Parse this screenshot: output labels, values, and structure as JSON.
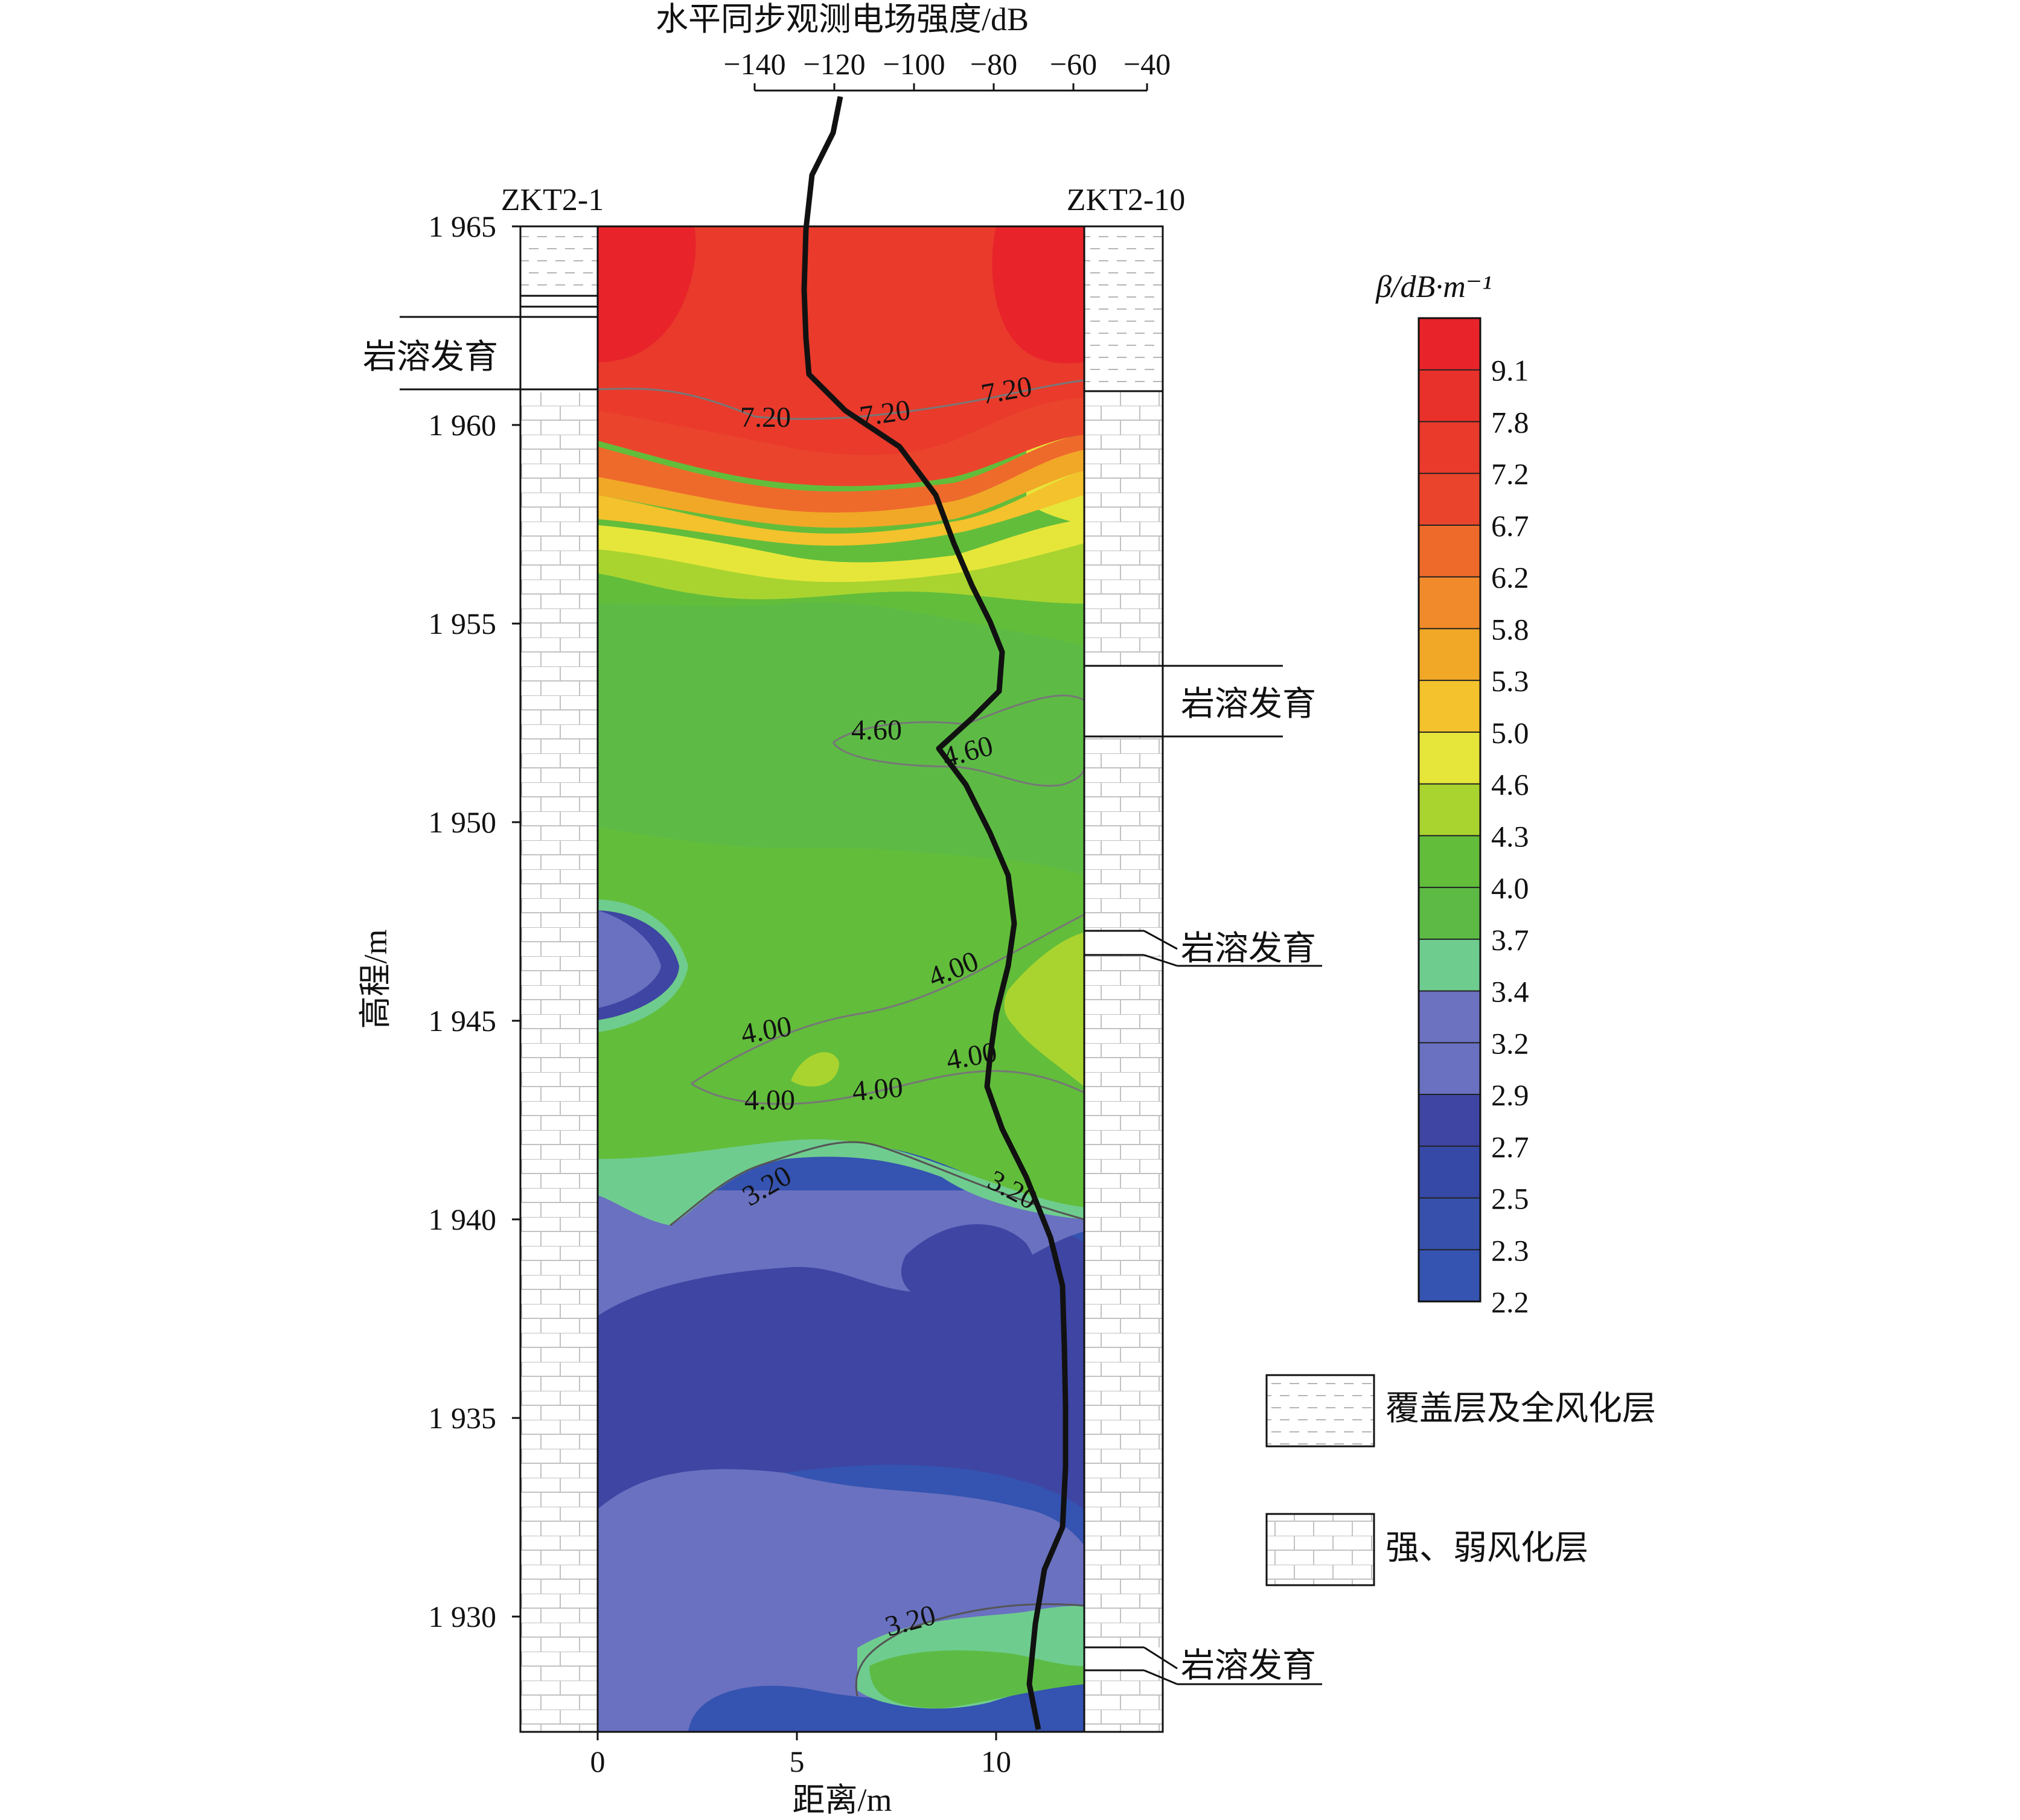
{
  "chart_data": {
    "type": "heatmap",
    "title": "",
    "top_axis": {
      "label": "水平同步观测电场强度/dB",
      "ticks": [
        "−140",
        "−120",
        "−100",
        "−80",
        "−60",
        "−40"
      ],
      "range": [
        -150,
        -45
      ]
    },
    "xlabel": "距离/m",
    "ylabel": "高程/m",
    "x_ticks": [
      "0",
      "5",
      "10"
    ],
    "y_ticks": [
      "1 965",
      "1 960",
      "1 955",
      "1 950",
      "1 945",
      "1 940",
      "1 935",
      "1 930"
    ],
    "xlim": [
      0,
      12.25
    ],
    "ylim": [
      1927,
      1965
    ],
    "boreholes": {
      "left": "ZKT2-1",
      "right": "ZKT2-10"
    },
    "karst_label": "岩溶发育",
    "colorbar": {
      "title": "β/dB·m⁻¹",
      "labels": [
        "9.1",
        "7.8",
        "7.2",
        "6.7",
        "6.2",
        "5.8",
        "5.3",
        "5.0",
        "4.6",
        "4.3",
        "4.0",
        "3.7",
        "3.4",
        "3.2",
        "2.9",
        "2.7",
        "2.5",
        "2.3",
        "2.2"
      ],
      "colors": [
        "#e8242a",
        "#e8312a",
        "#e93a2c",
        "#ea452c",
        "#ee6a2b",
        "#f08a2a",
        "#f1a827",
        "#f3c22c",
        "#e6e63a",
        "#a9d42f",
        "#62bd3b",
        "#5dbb45",
        "#6fcc8f",
        "#6c72c0",
        "#6971c0",
        "#3e45a3",
        "#3749a6",
        "#3650ab",
        "#3553b0"
      ]
    },
    "contour_labels": [
      "7.20",
      "7.20",
      "7.20",
      "4.60",
      "4.60",
      "4.00",
      "4.00",
      "4.00",
      "4.00",
      "4.00",
      "3.20",
      "3.20",
      "3.20"
    ],
    "legend": [
      {
        "name": "覆盖层及全风化层",
        "pattern": "dashed"
      },
      {
        "name": "强、弱风化层",
        "pattern": "brick"
      }
    ]
  }
}
